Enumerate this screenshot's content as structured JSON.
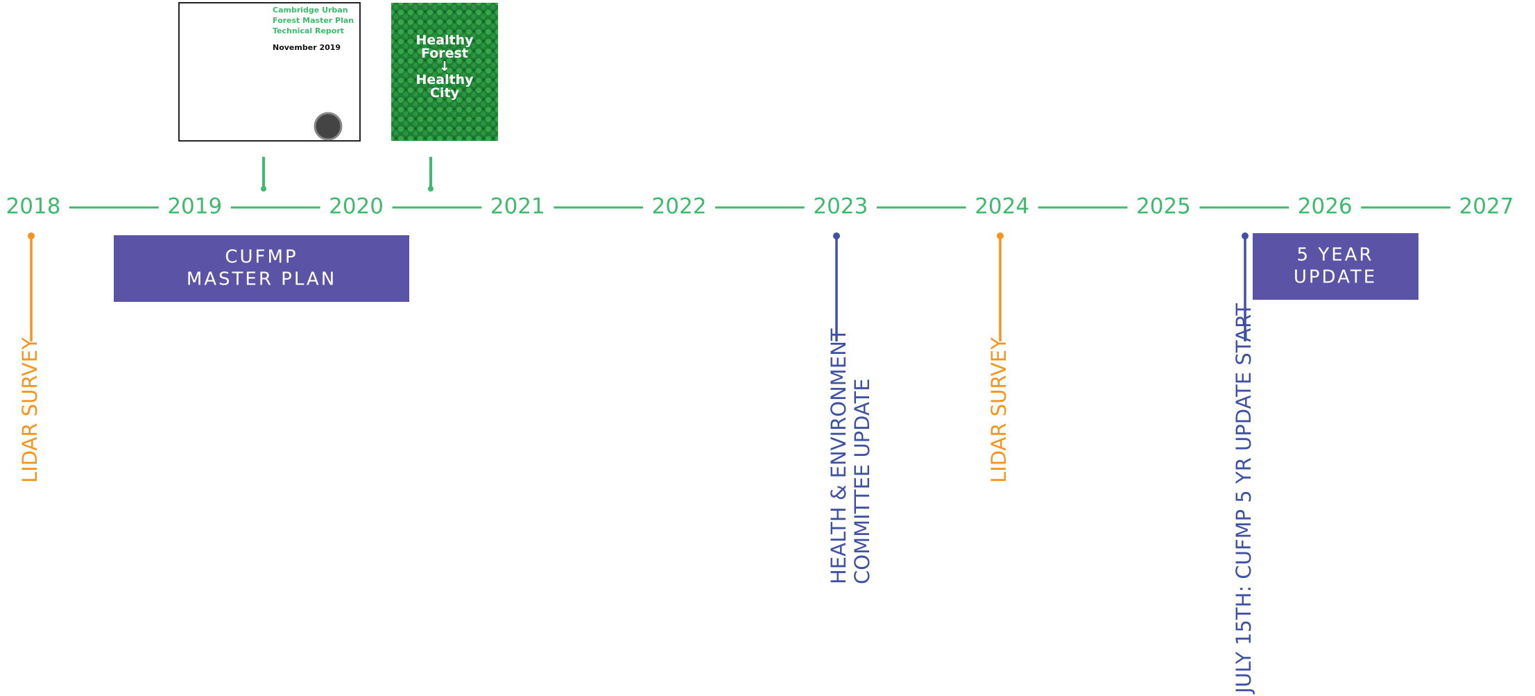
{
  "timeline": {
    "years": [
      "2018",
      "2019",
      "2020",
      "2021",
      "2022",
      "2023",
      "2024",
      "2025",
      "2026",
      "2027"
    ],
    "documents": [
      {
        "lines": [
          "Cambridge Urban",
          "Forest Master Plan",
          "Technical Report"
        ],
        "date": "November 2019"
      },
      {
        "lines": [
          "Healthy",
          "Forest",
          "↓",
          "Healthy",
          "City"
        ]
      }
    ],
    "boxes": [
      {
        "lines": [
          "CUFMP",
          "MASTER PLAN"
        ]
      },
      {
        "lines": [
          "5 YEAR",
          "UPDATE"
        ]
      }
    ],
    "events": [
      {
        "lines": [
          "LIDAR SURVEY"
        ],
        "color": "#f7941d"
      },
      {
        "lines": [
          "HEALTH & ENVIRONMENT",
          "COMMITTEE UPDATE"
        ],
        "color": "#3f51a3"
      },
      {
        "lines": [
          "LIDAR SURVEY"
        ],
        "color": "#f7941d"
      },
      {
        "lines": [
          "JULY 15TH: CUFMP 5 YR UPDATE START"
        ],
        "color": "#3f51a3"
      }
    ]
  }
}
